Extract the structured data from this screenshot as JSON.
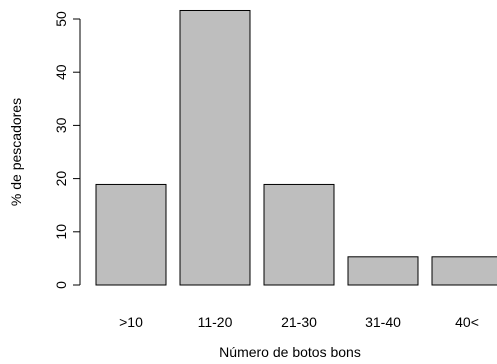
{
  "chart_data": {
    "type": "bar",
    "title": "",
    "xlabel": "Número de botos bons",
    "ylabel": "% de pescadores",
    "categories": [
      ">10",
      "11-20",
      "21-30",
      "31-40",
      "40<"
    ],
    "values": [
      18.9,
      51.6,
      18.9,
      5.3,
      5.3
    ],
    "ylim": [
      0,
      50
    ],
    "yticks": [
      0,
      10,
      20,
      30,
      40,
      50
    ],
    "grid": false,
    "legend": "none",
    "colors": {
      "bar_fill": "#bebebe",
      "bar_stroke": "#000000",
      "axis": "#000000",
      "text": "#000000"
    }
  }
}
